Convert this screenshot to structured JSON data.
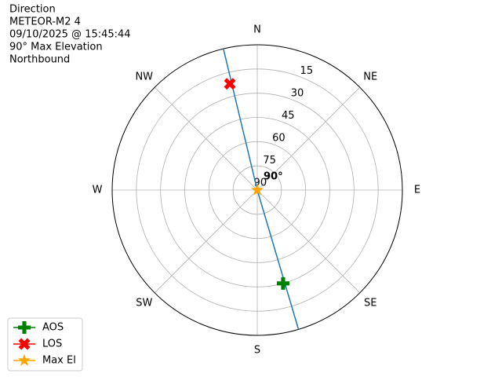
{
  "chart_data": {
    "type": "polar",
    "title_lines": [
      "Direction",
      "METEOR-M2 4",
      "09/10/2025 @ 15:45:44",
      "90° Max Elevation",
      "Northbound"
    ],
    "rlim": [
      90,
      0
    ],
    "rticks": [
      15,
      30,
      45,
      60,
      75,
      90
    ],
    "thetaticks": [
      {
        "value": 0,
        "label": "N"
      },
      {
        "value": 45,
        "label": "NE"
      },
      {
        "value": 90,
        "label": "E"
      },
      {
        "value": 135,
        "label": "SE"
      },
      {
        "value": 180,
        "label": "S"
      },
      {
        "value": 225,
        "label": "SW"
      },
      {
        "value": 270,
        "label": "W"
      },
      {
        "value": 315,
        "label": "NW"
      }
    ],
    "grid": true,
    "track": {
      "color": "#1f77b4",
      "azimuth": [
        163.5,
        163.5,
        346.5
      ],
      "elevation": [
        0,
        90,
        0
      ]
    },
    "markers": [
      {
        "name": "AOS",
        "color": "#008000",
        "marker": "plus",
        "azimuth": 164.5,
        "elevation": 30
      },
      {
        "name": "LOS",
        "color": "#ff0000",
        "marker": "x",
        "azimuth": 345.5,
        "elevation": 22
      },
      {
        "name": "Max El",
        "color": "#ffa500",
        "marker": "star",
        "azimuth": 164.5,
        "elevation": 90
      }
    ],
    "annotation": "90°",
    "legend": "lower left"
  }
}
